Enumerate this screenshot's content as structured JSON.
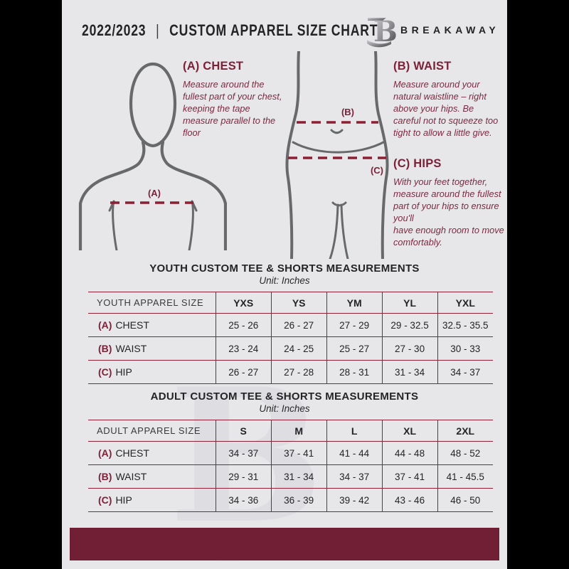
{
  "header": {
    "year": "2022/2023",
    "separator": "|",
    "title": "CUSTOM APPAREL SIZE CHART",
    "brand": "BREAKAWAY",
    "logo_letter": "B"
  },
  "guide": {
    "chest": {
      "heading": "(A) CHEST",
      "text": "Measure around the fullest part of your chest, keeping the tape measure parallel to the floor"
    },
    "waist": {
      "heading": "(B) WAIST",
      "text": "Measure around your natural waistline – right above your hips. Be careful not to squeeze too tight to allow a little give."
    },
    "hips": {
      "heading": "(C) HIPS",
      "text": "With your feet together, measure around the fullest part of your hips to ensure you'll\nhave enough room to move comfortably."
    },
    "marker_a": "(A)",
    "marker_b": "(B)",
    "marker_c": "(C)"
  },
  "youth_table": {
    "title": "YOUTH CUSTOM TEE & SHORTS MEASUREMENTS",
    "unit": "Unit: Inches",
    "header": [
      "YOUTH APPAREL SIZE",
      "YXS",
      "YS",
      "YM",
      "YL",
      "YXL"
    ],
    "rows": [
      {
        "prefix": "(A)",
        "label": "CHEST",
        "values": [
          "25 - 26",
          "26 - 27",
          "27 - 29",
          "29 - 32.5",
          "32.5 - 35.5"
        ]
      },
      {
        "prefix": "(B)",
        "label": "WAIST",
        "values": [
          "23 - 24",
          "24 - 25",
          "25 - 27",
          "27 - 30",
          "30 - 33"
        ]
      },
      {
        "prefix": "(C)",
        "label": "HIP",
        "values": [
          "26 - 27",
          "27 - 28",
          "28 - 31",
          "31 - 34",
          "34 - 37"
        ]
      }
    ]
  },
  "adult_table": {
    "title": "ADULT CUSTOM TEE & SHORTS MEASUREMENTS",
    "unit": "Unit: Inches",
    "header": [
      "ADULT APPAREL SIZE",
      "S",
      "M",
      "L",
      "XL",
      "2XL"
    ],
    "rows": [
      {
        "prefix": "(A)",
        "label": "CHEST",
        "values": [
          "34 - 37",
          "37 - 41",
          "41 - 44",
          "44 - 48",
          "48 - 52"
        ]
      },
      {
        "prefix": "(B)",
        "label": "WAIST",
        "values": [
          "29 - 31",
          "31 - 34",
          "34 - 37",
          "37 - 41",
          "41 - 45.5"
        ]
      },
      {
        "prefix": "(C)",
        "label": "HIP",
        "values": [
          "34 - 36",
          "36 - 39",
          "39 - 42",
          "43 - 46",
          "46 - 50"
        ]
      }
    ]
  },
  "colors": {
    "accent": "#7c2138",
    "table_line": "#8e2135",
    "footer_bar": "#701f35",
    "page_bg": "#e7e7e9",
    "figure_outline": "#67696b",
    "dash_line": "#8c1f32"
  }
}
